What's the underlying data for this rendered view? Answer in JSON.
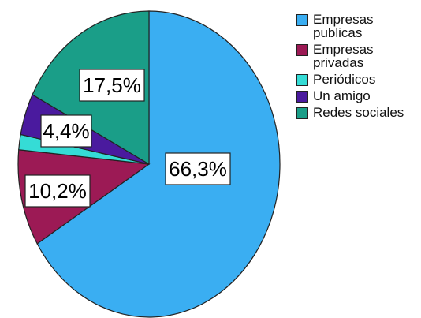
{
  "chart_data": {
    "type": "pie",
    "title": "",
    "categories": [
      "Empresas publicas",
      "Empresas privadas",
      "Periódicos",
      "Un amigo",
      "Redes sociales"
    ],
    "values": [
      66.3,
      10.2,
      1.6,
      4.4,
      17.5
    ],
    "data_labels": [
      "66,3%",
      "10,2%",
      "",
      "4,4%",
      "17,5%"
    ],
    "colors": [
      "#3aaef2",
      "#9c1a55",
      "#35dcd6",
      "#4a1a9e",
      "#1a9e88"
    ],
    "start_angle_deg": 0,
    "direction": "clockwise",
    "legend": {
      "position": "top-right",
      "entries": [
        {
          "lines": [
            "Empresas",
            "publicas"
          ],
          "color": "#3aaef2"
        },
        {
          "lines": [
            "Empresas",
            "privadas"
          ],
          "color": "#9c1a55"
        },
        {
          "lines": [
            "Periódicos"
          ],
          "color": "#35dcd6"
        },
        {
          "lines": [
            "Un amigo"
          ],
          "color": "#4a1a9e"
        },
        {
          "lines": [
            "Redes sociales"
          ],
          "color": "#1a9e88"
        }
      ]
    }
  }
}
